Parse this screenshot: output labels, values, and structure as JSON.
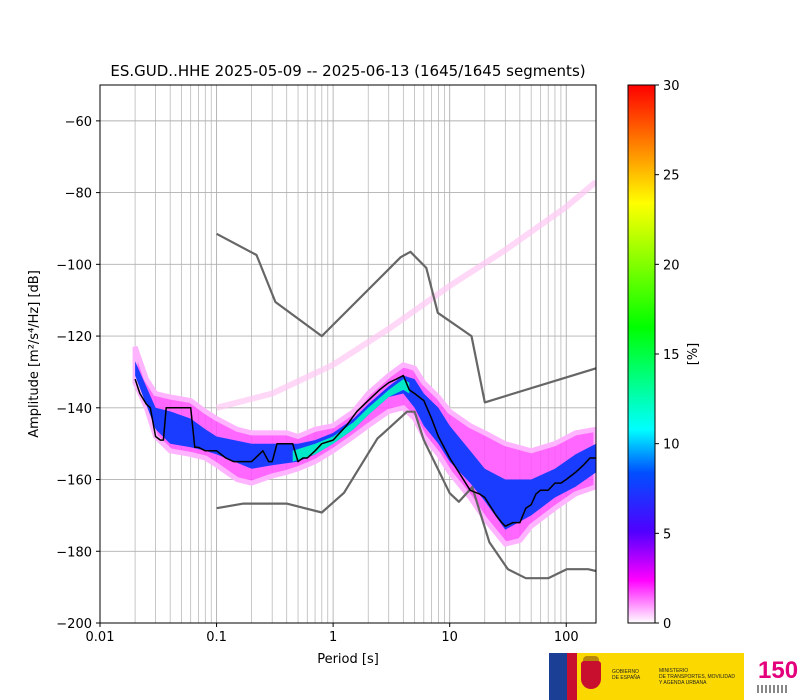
{
  "chart_data": {
    "type": "heatmap",
    "title": "ES.GUD..HHE   2025-05-09 -- 2025-06-13  (1645/1645 segments)",
    "xlabel": "Period [s]",
    "ylabel": "Amplitude [m²/s⁴/Hz] [dB]",
    "x_scale": "log",
    "xlim": [
      0.01,
      180
    ],
    "ylim": [
      -200,
      -50
    ],
    "x_ticks": [
      {
        "value": 0.01,
        "label": "0.01"
      },
      {
        "value": 0.1,
        "label": "0.1"
      },
      {
        "value": 1,
        "label": "1"
      },
      {
        "value": 10,
        "label": "10"
      },
      {
        "value": 100,
        "label": "100"
      }
    ],
    "y_ticks": [
      -60,
      -80,
      -100,
      -120,
      -140,
      -160,
      -180,
      -200
    ],
    "grid": true,
    "colorbar": {
      "label": "[%]",
      "min": 0,
      "max": 30,
      "ticks": [
        0,
        5,
        10,
        15,
        20,
        25,
        30
      ],
      "colormap": [
        "#ffffff",
        "#ff00ff",
        "#0000ff",
        "#00ffff",
        "#00ff00",
        "#ffff00",
        "#ff0000"
      ]
    },
    "mode_curve": {
      "name": "mode",
      "color": "#000000",
      "points": [
        [
          0.02,
          -132
        ],
        [
          0.022,
          -136
        ],
        [
          0.025,
          -139
        ],
        [
          0.027,
          -140
        ],
        [
          0.03,
          -148
        ],
        [
          0.033,
          -149
        ],
        [
          0.035,
          -149
        ],
        [
          0.037,
          -140
        ],
        [
          0.04,
          -140
        ],
        [
          0.05,
          -140
        ],
        [
          0.06,
          -140
        ],
        [
          0.065,
          -151
        ],
        [
          0.07,
          -151
        ],
        [
          0.08,
          -152
        ],
        [
          0.1,
          -152
        ],
        [
          0.12,
          -154
        ],
        [
          0.14,
          -155
        ],
        [
          0.2,
          -155
        ],
        [
          0.25,
          -152
        ],
        [
          0.28,
          -155
        ],
        [
          0.3,
          -155
        ],
        [
          0.33,
          -150
        ],
        [
          0.4,
          -150
        ],
        [
          0.45,
          -150
        ],
        [
          0.5,
          -155
        ],
        [
          0.55,
          -154
        ],
        [
          0.6,
          -154
        ],
        [
          0.7,
          -152
        ],
        [
          0.8,
          -150
        ],
        [
          1,
          -149
        ],
        [
          1.3,
          -145
        ],
        [
          1.6,
          -141
        ],
        [
          2,
          -138
        ],
        [
          2.5,
          -135
        ],
        [
          3,
          -133
        ],
        [
          3.5,
          -132
        ],
        [
          4,
          -131
        ],
        [
          4.5,
          -135
        ],
        [
          5,
          -136
        ],
        [
          6,
          -138
        ],
        [
          7,
          -143
        ],
        [
          8,
          -148
        ],
        [
          10,
          -154
        ],
        [
          12,
          -158
        ],
        [
          15,
          -163
        ],
        [
          18,
          -164
        ],
        [
          20,
          -165
        ],
        [
          25,
          -170
        ],
        [
          28,
          -172
        ],
        [
          30,
          -173
        ],
        [
          35,
          -172
        ],
        [
          40,
          -172
        ],
        [
          45,
          -168
        ],
        [
          50,
          -167
        ],
        [
          55,
          -164
        ],
        [
          60,
          -163
        ],
        [
          70,
          -163
        ],
        [
          80,
          -161
        ],
        [
          90,
          -161
        ],
        [
          100,
          -160
        ],
        [
          120,
          -158
        ],
        [
          140,
          -156
        ],
        [
          160,
          -154
        ],
        [
          180,
          -154
        ]
      ]
    },
    "noise_models": [
      {
        "name": "high",
        "color": "#666666",
        "points": [
          [
            0.1,
            -91.5
          ],
          [
            0.22,
            -97.4
          ],
          [
            0.32,
            -110.5
          ],
          [
            0.8,
            -120
          ],
          [
            3.8,
            -98
          ],
          [
            4.6,
            -96.5
          ],
          [
            6.3,
            -101
          ],
          [
            7.9,
            -113.5
          ],
          [
            15.4,
            -120
          ],
          [
            20,
            -138.5
          ],
          [
            180,
            -129
          ]
        ]
      },
      {
        "name": "low",
        "color": "#666666",
        "points": [
          [
            0.1,
            -168
          ],
          [
            0.17,
            -166.7
          ],
          [
            0.4,
            -166.7
          ],
          [
            0.8,
            -169.2
          ],
          [
            1.24,
            -163.7
          ],
          [
            2.4,
            -148.6
          ],
          [
            4.3,
            -141.1
          ],
          [
            5,
            -141.1
          ],
          [
            6,
            -149
          ],
          [
            10,
            -163.8
          ],
          [
            12,
            -166.2
          ],
          [
            15.6,
            -162.1
          ],
          [
            21.9,
            -177.5
          ],
          [
            31.6,
            -185
          ],
          [
            45,
            -187.5
          ],
          [
            70,
            -187.5
          ],
          [
            101,
            -185
          ],
          [
            154,
            -185
          ],
          [
            180,
            -185.5
          ]
        ]
      }
    ],
    "density": {
      "upper": [
        [
          0.02,
          -123
        ],
        [
          0.025,
          -132
        ],
        [
          0.03,
          -136
        ],
        [
          0.04,
          -137
        ],
        [
          0.06,
          -138
        ],
        [
          0.08,
          -141
        ],
        [
          0.1,
          -143
        ],
        [
          0.15,
          -146
        ],
        [
          0.2,
          -147
        ],
        [
          0.3,
          -147
        ],
        [
          0.4,
          -147
        ],
        [
          0.5,
          -148
        ],
        [
          0.7,
          -146
        ],
        [
          1,
          -145
        ],
        [
          1.5,
          -141
        ],
        [
          2,
          -136
        ],
        [
          3,
          -131
        ],
        [
          4,
          -128
        ],
        [
          5,
          -129
        ],
        [
          6,
          -133
        ],
        [
          8,
          -137
        ],
        [
          10,
          -141
        ],
        [
          15,
          -145
        ],
        [
          20,
          -147
        ],
        [
          30,
          -150
        ],
        [
          50,
          -152
        ],
        [
          80,
          -150
        ],
        [
          120,
          -147
        ],
        [
          180,
          -146
        ]
      ],
      "lower": [
        [
          0.02,
          -133
        ],
        [
          0.025,
          -140
        ],
        [
          0.03,
          -148
        ],
        [
          0.04,
          -152
        ],
        [
          0.06,
          -153
        ],
        [
          0.08,
          -154
        ],
        [
          0.1,
          -156
        ],
        [
          0.15,
          -160
        ],
        [
          0.2,
          -161
        ],
        [
          0.3,
          -159
        ],
        [
          0.4,
          -158
        ],
        [
          0.5,
          -157
        ],
        [
          0.7,
          -155
        ],
        [
          1,
          -152
        ],
        [
          1.5,
          -148
        ],
        [
          2,
          -145
        ],
        [
          3,
          -141
        ],
        [
          4,
          -140
        ],
        [
          5,
          -143
        ],
        [
          6,
          -148
        ],
        [
          8,
          -153
        ],
        [
          10,
          -158
        ],
        [
          15,
          -165
        ],
        [
          20,
          -171
        ],
        [
          30,
          -178
        ],
        [
          40,
          -177
        ],
        [
          50,
          -173
        ],
        [
          80,
          -168
        ],
        [
          120,
          -164
        ],
        [
          180,
          -162
        ]
      ],
      "core_upper": [
        [
          0.02,
          -127
        ],
        [
          0.03,
          -140
        ],
        [
          0.04,
          -141
        ],
        [
          0.06,
          -143
        ],
        [
          0.08,
          -146
        ],
        [
          0.1,
          -148
        ],
        [
          0.2,
          -150
        ],
        [
          0.3,
          -150
        ],
        [
          0.5,
          -150
        ],
        [
          0.7,
          -149
        ],
        [
          1,
          -147
        ],
        [
          1.5,
          -143
        ],
        [
          2,
          -139
        ],
        [
          3,
          -134
        ],
        [
          4,
          -131
        ],
        [
          5,
          -132
        ],
        [
          6,
          -136
        ],
        [
          8,
          -140
        ],
        [
          10,
          -145
        ],
        [
          15,
          -152
        ],
        [
          20,
          -157
        ],
        [
          30,
          -160
        ],
        [
          50,
          -160
        ],
        [
          80,
          -157
        ],
        [
          120,
          -153
        ],
        [
          180,
          -150
        ]
      ],
      "core_lower": [
        [
          0.02,
          -131
        ],
        [
          0.03,
          -146
        ],
        [
          0.04,
          -150
        ],
        [
          0.06,
          -151
        ],
        [
          0.08,
          -152
        ],
        [
          0.1,
          -153
        ],
        [
          0.2,
          -157
        ],
        [
          0.3,
          -156
        ],
        [
          0.5,
          -155
        ],
        [
          0.7,
          -153
        ],
        [
          1,
          -150
        ],
        [
          1.5,
          -146
        ],
        [
          2,
          -142
        ],
        [
          3,
          -137
        ],
        [
          4,
          -136
        ],
        [
          5,
          -140
        ],
        [
          6,
          -145
        ],
        [
          8,
          -150
        ],
        [
          10,
          -155
        ],
        [
          15,
          -161
        ],
        [
          20,
          -166
        ],
        [
          30,
          -174
        ],
        [
          50,
          -170
        ],
        [
          80,
          -165
        ],
        [
          120,
          -162
        ],
        [
          180,
          -158
        ]
      ],
      "peak_upper": [
        [
          0.45,
          -152
        ],
        [
          0.7,
          -150
        ],
        [
          1,
          -148
        ],
        [
          1.5,
          -144
        ],
        [
          2,
          -140
        ],
        [
          3,
          -135
        ],
        [
          4,
          -132
        ],
        [
          4.5,
          -133
        ]
      ],
      "peak_lower": [
        [
          0.45,
          -155
        ],
        [
          0.7,
          -153
        ],
        [
          1,
          -150
        ],
        [
          1.5,
          -146
        ],
        [
          2,
          -142
        ],
        [
          3,
          -137
        ],
        [
          4,
          -135
        ],
        [
          4.5,
          -136
        ]
      ],
      "faint_line": [
        [
          0.1,
          -140
        ],
        [
          0.3,
          -136
        ],
        [
          1,
          -128
        ],
        [
          3,
          -118
        ],
        [
          10,
          -106
        ],
        [
          30,
          -96
        ],
        [
          100,
          -84
        ],
        [
          180,
          -77
        ]
      ]
    }
  }
}
